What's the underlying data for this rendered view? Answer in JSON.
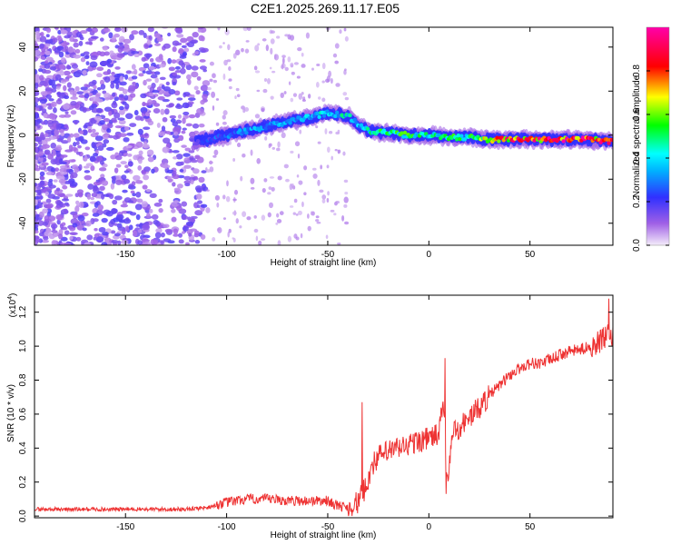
{
  "title": "C2E1.2025.269.11.17.E05",
  "chart_data": [
    {
      "type": "heatmap",
      "title": "C2E1.2025.269.11.17.E05",
      "xlabel": "Height of straight line (km)",
      "ylabel": "Frequency (Hz)",
      "xlim": [
        -195,
        91
      ],
      "ylim": [
        -50,
        49
      ],
      "xticks": [
        -150,
        -100,
        -50,
        0,
        50
      ],
      "yticks": [
        -40,
        -20,
        0,
        20,
        40
      ],
      "grid": false,
      "colorbar": {
        "label": "Normalized spectral amplitude",
        "range": [
          0,
          1
        ],
        "ticks": [
          0.0,
          0.2,
          0.4,
          0.6,
          0.8
        ],
        "tick_labels": [
          "0.0",
          "0.2",
          "0.4",
          "0.6",
          "0.8"
        ],
        "colormap": [
          "#f4ecfa",
          "#8a2be2",
          "#0000ff",
          "#00ffff",
          "#00ff00",
          "#ffff00",
          "#ff0000",
          "#ff00aa"
        ]
      },
      "ridge": {
        "x": [
          -115,
          -105,
          -90,
          -75,
          -60,
          -50,
          -40,
          -35,
          -30,
          -20,
          -10,
          0,
          10,
          20,
          30,
          40,
          50,
          60,
          70,
          80,
          91
        ],
        "freq": [
          -3,
          -1,
          2,
          5,
          8,
          10,
          9,
          5,
          2,
          1,
          0,
          0,
          -1,
          -1,
          -2,
          -2,
          -2,
          -2,
          -2,
          -2,
          -3
        ],
        "amplitude": [
          0.25,
          0.3,
          0.35,
          0.4,
          0.45,
          0.45,
          0.5,
          0.4,
          0.5,
          0.6,
          0.6,
          0.5,
          0.55,
          0.6,
          0.8,
          0.9,
          0.95,
          1.0,
          1.0,
          0.95,
          0.9
        ]
      }
    },
    {
      "type": "line",
      "xlabel": "Height of straight line (km)",
      "ylabel": "SNR (10 * v/v)",
      "y_multiplier": "(x10",
      "y_exponent": "4",
      "y_multiplier_close": ")",
      "xlim": [
        -195,
        91
      ],
      "ylim": [
        -0.01,
        1.3
      ],
      "xticks": [
        -150,
        -100,
        -50,
        0,
        50
      ],
      "yticks": [
        0.0,
        0.2,
        0.4,
        0.6,
        0.8,
        1.0,
        1.2
      ],
      "ytick_labels": [
        "0.0",
        "0.2",
        "0.4",
        "0.6",
        "0.8",
        "1.0",
        "1.2"
      ],
      "grid": false,
      "color": "#ee3333",
      "series": [
        {
          "x": [
            -195,
            -180,
            -160,
            -140,
            -120,
            -110,
            -100,
            -90,
            -80,
            -70,
            -60,
            -50,
            -45,
            -40,
            -35,
            -32,
            -30,
            -28,
            -25,
            -20,
            -15,
            -10,
            -5,
            0,
            5,
            7,
            9,
            12,
            15,
            20,
            25,
            30,
            35,
            40,
            45,
            50,
            55,
            60,
            65,
            70,
            75,
            80,
            85,
            88,
            91
          ],
          "y": [
            0.04,
            0.04,
            0.04,
            0.04,
            0.04,
            0.05,
            0.08,
            0.1,
            0.1,
            0.09,
            0.09,
            0.09,
            0.06,
            0.05,
            0.08,
            0.15,
            0.22,
            0.3,
            0.35,
            0.38,
            0.4,
            0.42,
            0.44,
            0.46,
            0.48,
            0.7,
            0.2,
            0.5,
            0.52,
            0.58,
            0.64,
            0.71,
            0.77,
            0.83,
            0.87,
            0.9,
            0.9,
            0.92,
            0.95,
            0.97,
            0.98,
            1.0,
            1.03,
            1.06,
            1.05
          ]
        }
      ],
      "spikes": [
        {
          "x": -33,
          "y": 0.67
        },
        {
          "x": 8,
          "y": 0.93
        },
        {
          "x": 8.5,
          "y": 0.13
        },
        {
          "x": 89,
          "y": 1.28
        }
      ]
    }
  ]
}
